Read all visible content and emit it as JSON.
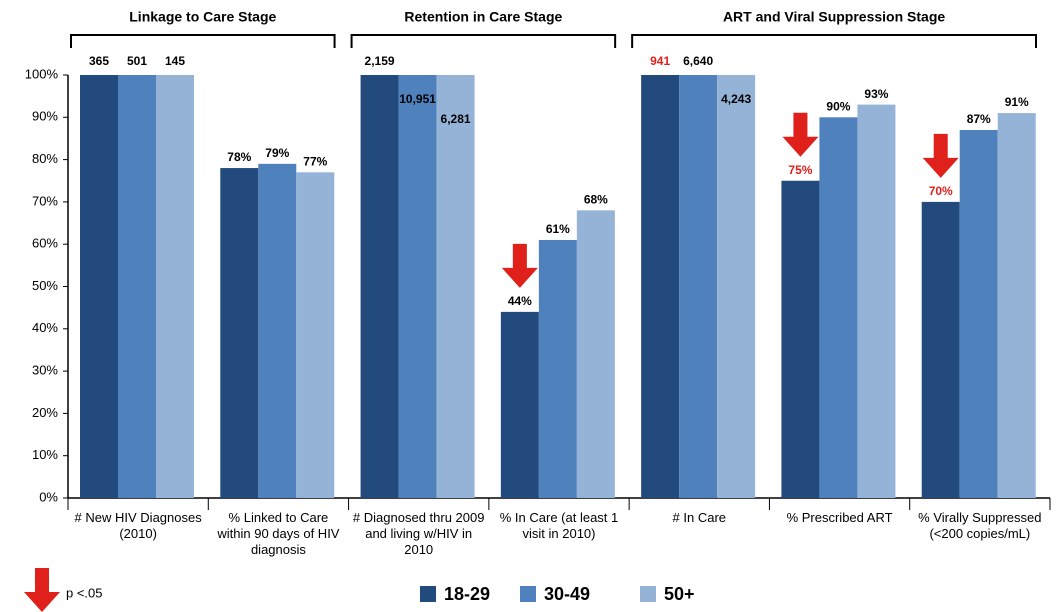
{
  "chart_data": {
    "type": "bar",
    "categories": [
      "# New HIV Diagnoses (2010)",
      "% Linked to Care within 90 days of HIV diagnosis",
      "# Diagnosed thru 2009 and living w/HIV in 2010",
      "% In Care (at least 1 visit in 2010)",
      "# In Care",
      "% Prescribed ART",
      "% Virally Suppressed (<200 copies/mL)"
    ],
    "stages": [
      {
        "title": "Linkage to Care Stage",
        "span": 2
      },
      {
        "title": "Retention in Care Stage",
        "span": 2
      },
      {
        "title": "ART and Viral Suppression Stage",
        "span": 3
      }
    ],
    "series": [
      {
        "name": "18-29",
        "color": "#234a7c",
        "values": [
          100,
          78,
          100,
          44,
          100,
          75,
          70
        ],
        "value_labels": [
          null,
          "78%",
          null,
          "44%",
          null,
          "75%",
          "70%"
        ],
        "counts": [
          365,
          null,
          {
            "value": 2159,
            "label": "2,159"
          },
          null,
          941,
          null,
          null
        ],
        "red_label": [
          false,
          false,
          false,
          false,
          true,
          true,
          true
        ],
        "arrow": [
          false,
          false,
          false,
          true,
          false,
          true,
          true
        ]
      },
      {
        "name": "30-49",
        "color": "#4f81bd",
        "values": [
          100,
          79,
          100,
          61,
          100,
          90,
          87
        ],
        "value_labels": [
          null,
          "79%",
          null,
          "61%",
          null,
          "90%",
          "87%"
        ],
        "counts": [
          501,
          null,
          {
            "value": 10951,
            "label": "10,951"
          },
          null,
          {
            "value": 6640,
            "label": "6,640"
          },
          null,
          null
        ]
      },
      {
        "name": "50+",
        "color": "#95b3d7",
        "values": [
          100,
          77,
          100,
          68,
          100,
          93,
          91
        ],
        "value_labels": [
          null,
          "77%",
          null,
          "68%",
          null,
          "93%",
          "91%"
        ],
        "counts": [
          145,
          null,
          {
            "value": 6281,
            "label": "6,281"
          },
          null,
          {
            "value": 4243,
            "label": "4,243"
          },
          null,
          null
        ]
      }
    ],
    "ylim": [
      0,
      100
    ],
    "yticks": [
      {
        "value": 0,
        "label": "0%"
      },
      {
        "value": 10,
        "label": "10%"
      },
      {
        "value": 20,
        "label": "20%"
      },
      {
        "value": 30,
        "label": "30%"
      },
      {
        "value": 40,
        "label": "40%"
      },
      {
        "value": 50,
        "label": "50%"
      },
      {
        "value": 60,
        "label": "60%"
      },
      {
        "value": 70,
        "label": "70%"
      },
      {
        "value": 80,
        "label": "80%"
      },
      {
        "value": 90,
        "label": "90%"
      },
      {
        "value": 100,
        "label": "100%"
      }
    ],
    "grid": false,
    "significance_note": "p <.05",
    "arrow_color": "#e0201b"
  }
}
